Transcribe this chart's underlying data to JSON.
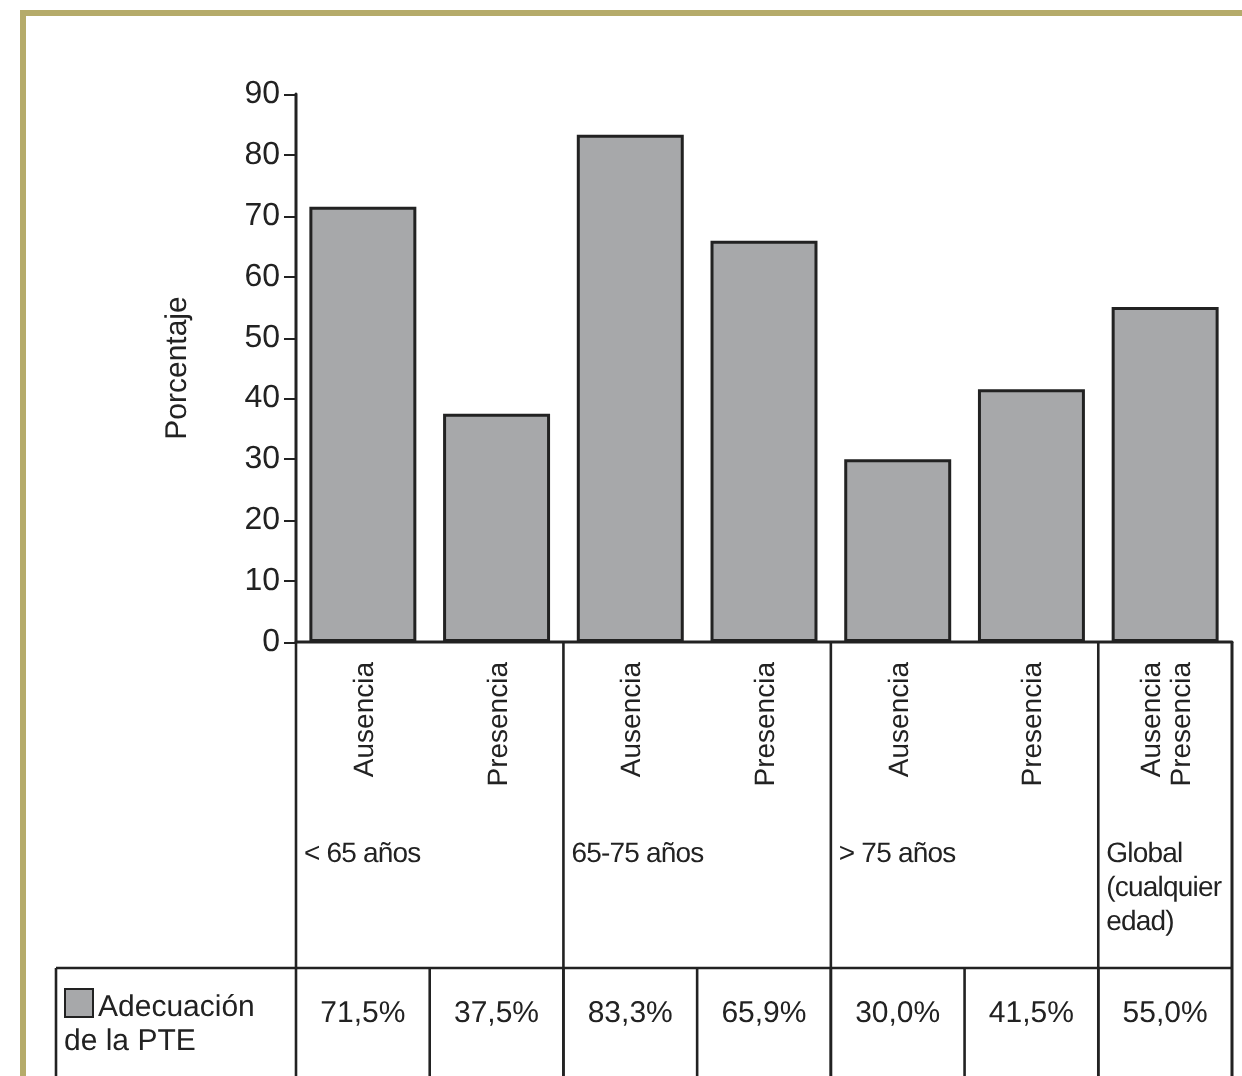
{
  "chart_data": {
    "type": "bar",
    "ylabel": "Porcentaje",
    "categories": [
      "Ausencia",
      "Presencia",
      "Ausencia",
      "Presencia",
      "Ausencia",
      "Presencia",
      "Ausencia\nPresencia"
    ],
    "series": [
      {
        "name": "Adecuación de la PTE",
        "color": "#a7a8aa",
        "values": [
          71.5,
          37.5,
          83.3,
          65.9,
          30.0,
          41.5,
          55.0
        ],
        "value_labels": [
          "71,5%",
          "37,5%",
          "83,3%",
          "65,9%",
          "30,0%",
          "41,5%",
          "55,0%"
        ]
      }
    ],
    "annotations": [
      "< 65 años",
      "65-75 años",
      "> 75 años",
      "Global (cualquier edad)"
    ],
    "ylim": [
      0,
      90
    ],
    "yticks": [
      0,
      10,
      20,
      30,
      40,
      50,
      60,
      70,
      80,
      90
    ],
    "grid": false,
    "legend": "bottom left"
  }
}
